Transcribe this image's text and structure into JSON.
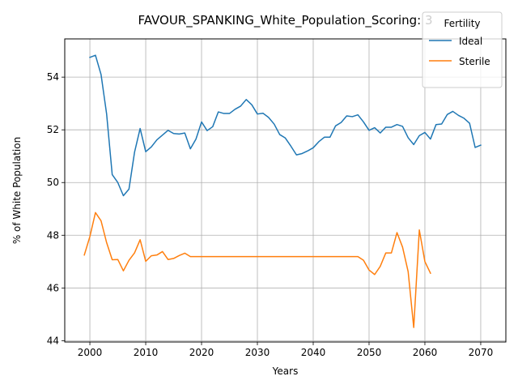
{
  "chart_data": {
    "type": "line",
    "title": "FAVOUR_SPANKING_White_Population_Scoring: 3",
    "xlabel": "Years",
    "ylabel": "% of White Population",
    "xlim": [
      1995.5,
      2074.5
    ],
    "ylim": [
      43.95,
      55.45
    ],
    "xticks": [
      2000,
      2010,
      2020,
      2030,
      2040,
      2050,
      2060,
      2070
    ],
    "yticks": [
      44,
      46,
      48,
      50,
      52,
      54
    ],
    "grid": true,
    "legend": {
      "title": "Fertility",
      "position": "top-right"
    },
    "series": [
      {
        "name": "Ideal",
        "color": "#1f77b4",
        "x": [
          2000,
          2001,
          2002,
          2003,
          2004,
          2005,
          2006,
          2007,
          2008,
          2009,
          2010,
          2011,
          2012,
          2013,
          2014,
          2015,
          2016,
          2017,
          2018,
          2019,
          2020,
          2021,
          2022,
          2023,
          2024,
          2025,
          2026,
          2027,
          2028,
          2029,
          2030,
          2031,
          2032,
          2033,
          2034,
          2035,
          2036,
          2037,
          2038,
          2039,
          2040,
          2041,
          2042,
          2043,
          2044,
          2045,
          2046,
          2047,
          2048,
          2049,
          2050,
          2051,
          2052,
          2053,
          2054,
          2055,
          2056,
          2057,
          2058,
          2059,
          2060,
          2061,
          2062,
          2063,
          2064,
          2065,
          2066,
          2067,
          2068,
          2069,
          2070
        ],
        "y": [
          54.75,
          54.83,
          54.1,
          52.6,
          50.3,
          50.0,
          49.5,
          49.75,
          51.15,
          52.05,
          51.17,
          51.35,
          51.62,
          51.8,
          51.98,
          51.86,
          51.84,
          51.88,
          51.28,
          51.65,
          52.3,
          51.97,
          52.12,
          52.68,
          52.62,
          52.62,
          52.78,
          52.9,
          53.15,
          52.95,
          52.6,
          52.63,
          52.47,
          52.22,
          51.82,
          51.69,
          51.38,
          51.05,
          51.1,
          51.2,
          51.32,
          51.55,
          51.72,
          51.72,
          52.15,
          52.28,
          52.53,
          52.5,
          52.57,
          52.3,
          51.98,
          52.08,
          51.88,
          52.1,
          52.1,
          52.2,
          52.13,
          51.7,
          51.44,
          51.78,
          51.9,
          51.65,
          52.2,
          52.22,
          52.58,
          52.7,
          52.55,
          52.44,
          52.25,
          51.33,
          51.42
        ]
      },
      {
        "name": "Sterile",
        "color": "#ff7f0e",
        "x": [
          1999,
          2000,
          2001,
          2002,
          2003,
          2004,
          2005,
          2006,
          2007,
          2008,
          2009,
          2010,
          2011,
          2012,
          2013,
          2014,
          2015,
          2016,
          2017,
          2018,
          2019,
          2020,
          2021,
          2022,
          2023,
          2024,
          2025,
          2026,
          2027,
          2028,
          2029,
          2030,
          2031,
          2032,
          2033,
          2034,
          2035,
          2036,
          2037,
          2038,
          2039,
          2040,
          2041,
          2042,
          2043,
          2044,
          2045,
          2046,
          2047,
          2048,
          2049,
          2050,
          2051,
          2052,
          2053,
          2054,
          2055,
          2056,
          2057,
          2058,
          2059,
          2060,
          2061
        ],
        "y": [
          47.25,
          47.95,
          48.86,
          48.55,
          47.72,
          47.07,
          47.08,
          46.65,
          47.05,
          47.33,
          47.83,
          47.01,
          47.22,
          47.25,
          47.38,
          47.08,
          47.12,
          47.23,
          47.32,
          47.19,
          47.19,
          47.19,
          47.19,
          47.19,
          47.19,
          47.19,
          47.19,
          47.19,
          47.19,
          47.19,
          47.19,
          47.19,
          47.19,
          47.19,
          47.19,
          47.19,
          47.19,
          47.19,
          47.19,
          47.19,
          47.19,
          47.19,
          47.19,
          47.19,
          47.19,
          47.19,
          47.19,
          47.19,
          47.19,
          47.19,
          47.05,
          46.68,
          46.51,
          46.82,
          47.33,
          47.33,
          48.1,
          47.55,
          46.62,
          44.5,
          48.2,
          47.0,
          46.56
        ]
      }
    ]
  }
}
